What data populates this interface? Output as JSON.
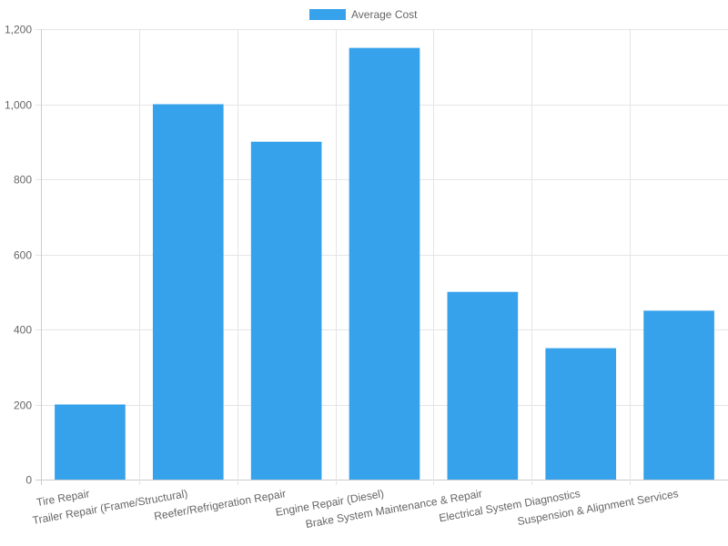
{
  "chart_data": {
    "type": "bar",
    "categories": [
      "Tire Repair",
      "Trailer Repair (Frame/Structural)",
      "Reefer/Refrigeration Repair",
      "Engine Repair (Diesel)",
      "Brake System Maintenance & Repair",
      "Electrical System Diagnostics",
      "Suspension & Alignment Services"
    ],
    "series": [
      {
        "name": "Average Cost",
        "values": [
          200,
          1000,
          900,
          1150,
          500,
          350,
          450
        ],
        "color": "#36a2eb"
      }
    ],
    "title": "",
    "xlabel": "",
    "ylabel": "",
    "ylim": [
      0,
      1200
    ],
    "y_ticks": [
      "0",
      "200",
      "400",
      "600",
      "800",
      "1,000",
      "1,200"
    ],
    "grid": true,
    "legend_position": "top"
  }
}
